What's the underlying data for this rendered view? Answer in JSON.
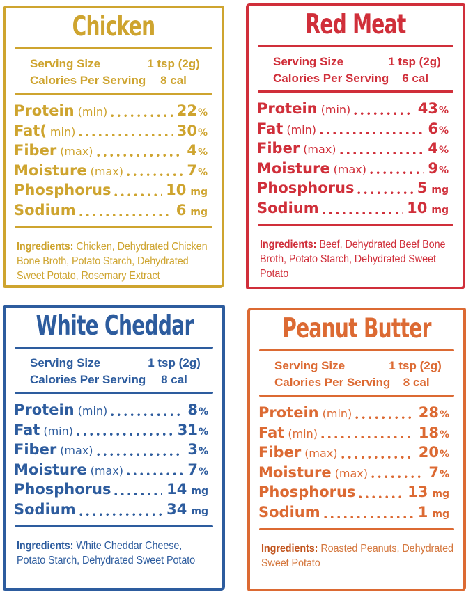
{
  "cards": [
    {
      "id": "chicken",
      "title": "Chicken",
      "color": "#CEA42F",
      "serving": {
        "size_label": "Serving Size",
        "size_value": "1 tsp (2g)",
        "calories_label": "Calories Per Serving",
        "calories_value": "8 cal"
      },
      "nutrients": [
        {
          "label": "Protein",
          "qualifier": "(min)",
          "value": "22",
          "unit": "%"
        },
        {
          "label": "Fat(",
          "qualifier": "min)",
          "value": "30",
          "unit": "%"
        },
        {
          "label": "Fiber",
          "qualifier": "(max)",
          "value": "4",
          "unit": "%"
        },
        {
          "label": "Moisture",
          "qualifier": "(max)",
          "value": "7",
          "unit": "%"
        },
        {
          "label": "Phosphorus",
          "qualifier": "",
          "value": "10",
          "unit": "mg"
        },
        {
          "label": "Sodium",
          "qualifier": "",
          "value": "6",
          "unit": "mg"
        }
      ],
      "ingredients_label": "Ingredients:",
      "ingredients_text": "Chicken, Dehydrated Chicken Bone Broth, Potato Starch, Dehydrated Sweet Potato, Rosemary Extract"
    },
    {
      "id": "red-meat",
      "title": "Red Meat",
      "color": "#D02F3A",
      "serving": {
        "size_label": "Serving Size",
        "size_value": "1 tsp (2g)",
        "calories_label": "Calories Per Serving",
        "calories_value": "6 cal"
      },
      "nutrients": [
        {
          "label": "Protein",
          "qualifier": "(min)",
          "value": "43",
          "unit": "%"
        },
        {
          "label": "Fat",
          "qualifier": "(min)",
          "value": "6",
          "unit": "%"
        },
        {
          "label": "Fiber",
          "qualifier": "(max)",
          "value": "4",
          "unit": "%"
        },
        {
          "label": "Moisture",
          "qualifier": "(max)",
          "value": "9",
          "unit": "%"
        },
        {
          "label": "Phosphorus",
          "qualifier": "",
          "value": "5",
          "unit": "mg"
        },
        {
          "label": "Sodium",
          "qualifier": "",
          "value": "10",
          "unit": "mg"
        }
      ],
      "ingredients_label": "Ingredients:",
      "ingredients_text": "Beef, Dehydrated Beef Bone Broth, Potato Starch, Dehydrated Sweet Potato"
    },
    {
      "id": "white-cheddar",
      "title": "White Cheddar",
      "color": "#2D5C9E",
      "serving": {
        "size_label": "Serving Size",
        "size_value": "1 tsp (2g)",
        "calories_label": "Calories Per Serving",
        "calories_value": "8 cal"
      },
      "nutrients": [
        {
          "label": "Protein",
          "qualifier": "(min)",
          "value": "8",
          "unit": "%"
        },
        {
          "label": "Fat",
          "qualifier": "(min)",
          "value": "31",
          "unit": "%"
        },
        {
          "label": "Fiber",
          "qualifier": "(max)",
          "value": "3",
          "unit": "%"
        },
        {
          "label": "Moisture",
          "qualifier": "(max)",
          "value": "7",
          "unit": "%"
        },
        {
          "label": "Phosphorus",
          "qualifier": "",
          "value": "14",
          "unit": "mg"
        },
        {
          "label": "Sodium",
          "qualifier": "",
          "value": "34",
          "unit": "mg"
        }
      ],
      "ingredients_label": "Ingredients:",
      "ingredients_text": "White Cheddar Cheese, Potato Starch, Dehydrated Sweet Potato"
    },
    {
      "id": "peanut-butter",
      "title": "Peanut Butter",
      "color": "#DC6A33",
      "ingredients_label_color": "#C2551E",
      "ingredients_text_color": "#D4763C",
      "serving": {
        "size_label": "Serving Size",
        "size_value": "1 tsp (2g)",
        "calories_label": "Calories Per Serving",
        "calories_value": "8 cal"
      },
      "nutrients": [
        {
          "label": "Protein",
          "qualifier": "(min)",
          "value": "28",
          "unit": "%"
        },
        {
          "label": "Fat",
          "qualifier": "(min)",
          "value": "18",
          "unit": "%"
        },
        {
          "label": "Fiber",
          "qualifier": "(max)",
          "value": "20",
          "unit": "%"
        },
        {
          "label": "Moisture",
          "qualifier": "(max)",
          "value": "7",
          "unit": "%"
        },
        {
          "label": "Phosphorus",
          "qualifier": "",
          "value": "13",
          "unit": "mg"
        },
        {
          "label": "Sodium",
          "qualifier": "",
          "value": "1",
          "unit": "mg"
        }
      ],
      "ingredients_label": "Ingredients:",
      "ingredients_text": "Roasted Peanuts, Dehydrated Sweet Potato"
    }
  ]
}
